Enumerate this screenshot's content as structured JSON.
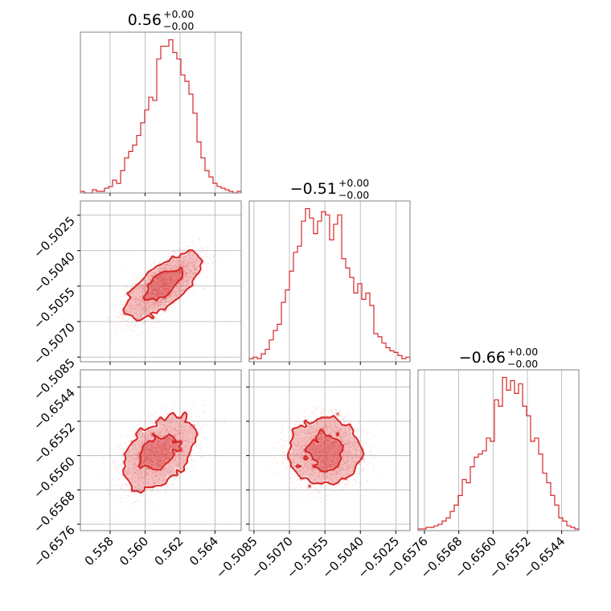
{
  "chart_data": {
    "type": "corner",
    "color": "#d62728",
    "grid": true,
    "titles": [
      {
        "value": "0.56",
        "plus": "+0.00",
        "minus": "−0.00"
      },
      {
        "value": "−0.51",
        "plus": "+0.00",
        "minus": "−0.00"
      },
      {
        "value": "−0.66",
        "plus": "+0.00",
        "minus": "−0.00"
      }
    ],
    "params": [
      {
        "range": [
          0.5563,
          0.5655
        ],
        "ticks": [
          0.558,
          0.56,
          0.562,
          0.564
        ],
        "tick_labels": [
          "0.558",
          "0.560",
          "0.562",
          "0.564"
        ]
      },
      {
        "range": [
          -0.5087,
          -0.5019
        ],
        "ticks": [
          -0.5085,
          -0.507,
          -0.5055,
          -0.504,
          -0.5025
        ],
        "tick_labels": [
          "−0.5085",
          "−0.5070",
          "−0.5055",
          "−0.5040",
          "−0.5025"
        ]
      },
      {
        "range": [
          -0.65775,
          -0.654
        ],
        "ticks": [
          -0.6576,
          -0.6568,
          -0.656,
          -0.6552,
          -0.6544
        ],
        "tick_labels": [
          "−0.6576",
          "−0.6568",
          "−0.6560",
          "−0.6552",
          "−0.6544"
        ]
      }
    ],
    "histograms": [
      {
        "bins": 40,
        "counts": [
          1,
          0,
          0,
          2,
          1,
          1,
          3,
          4,
          8,
          6,
          14,
          22,
          26,
          30,
          36,
          44,
          52,
          60,
          58,
          84,
          92,
          92,
          96,
          88,
          84,
          74,
          70,
          62,
          50,
          32,
          22,
          14,
          10,
          6,
          4,
          3,
          2,
          1,
          0,
          1
        ]
      },
      {
        "bins": 40,
        "counts": [
          2,
          3,
          2,
          5,
          8,
          14,
          20,
          24,
          38,
          46,
          58,
          70,
          74,
          90,
          98,
          92,
          82,
          90,
          96,
          94,
          78,
          88,
          94,
          66,
          60,
          54,
          44,
          50,
          40,
          44,
          36,
          18,
          16,
          12,
          9,
          7,
          6,
          4,
          2,
          3
        ]
      },
      {
        "bins": 40,
        "counts": [
          1,
          1,
          2,
          2,
          3,
          4,
          6,
          8,
          12,
          16,
          22,
          32,
          30,
          40,
          46,
          48,
          50,
          58,
          56,
          82,
          78,
          96,
          88,
          94,
          86,
          92,
          78,
          72,
          56,
          58,
          48,
          36,
          30,
          22,
          16,
          8,
          6,
          3,
          2,
          1
        ]
      }
    ],
    "pairs": [
      {
        "x_param": 0,
        "y_param": 1,
        "x_mean": 0.561,
        "y_mean": -0.5055,
        "x_sd": 0.00105,
        "y_sd": 0.0007,
        "rho": 0.72
      },
      {
        "x_param": 0,
        "y_param": 2,
        "x_mean": 0.5608,
        "y_mean": -0.65595,
        "x_sd": 0.00105,
        "y_sd": 0.00042,
        "rho": 0.45
      },
      {
        "x_param": 1,
        "y_param": 2,
        "x_mean": -0.5055,
        "y_mean": -0.6559,
        "x_sd": 0.00075,
        "y_sd": 0.0004,
        "rho": 0.0
      }
    ]
  }
}
